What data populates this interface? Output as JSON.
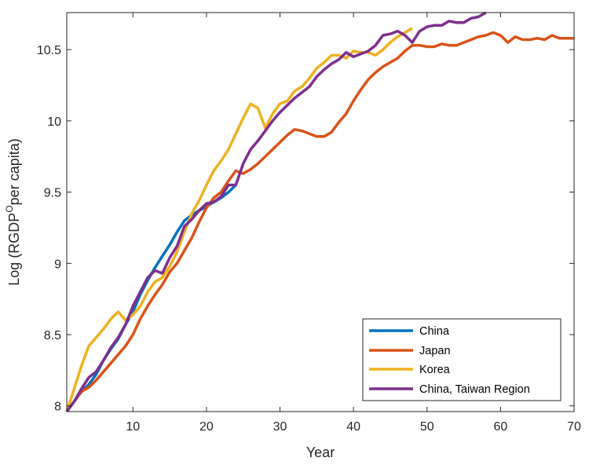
{
  "chart_data": {
    "type": "line",
    "xlabel": "Year",
    "ylabel": {
      "main": "Log (RGDP",
      "sup": "O",
      "tail": "per capita)"
    },
    "xlim": [
      1,
      70
    ],
    "ylim": [
      7.96,
      10.76
    ],
    "xticks": [
      10,
      20,
      30,
      40,
      50,
      60,
      70
    ],
    "xtick_labels": [
      "10",
      "20",
      "30",
      "40",
      "50",
      "60",
      "70"
    ],
    "yticks": [
      8,
      8.5,
      9,
      9.5,
      10,
      10.5
    ],
    "ytick_labels": [
      "8",
      "8.5",
      "9",
      "9.5",
      "10",
      "10.5"
    ],
    "grid": false,
    "legend_position": "bottom-right",
    "series": [
      {
        "name": "China",
        "color": "#0072BD",
        "x": [
          1,
          2,
          3,
          4,
          5,
          6,
          7,
          8,
          9,
          10,
          11,
          12,
          13,
          14,
          15,
          16,
          17,
          18,
          19,
          20,
          21,
          22,
          23,
          24
        ],
        "y": [
          7.96,
          8.03,
          8.1,
          8.15,
          8.22,
          8.32,
          8.4,
          8.47,
          8.57,
          8.66,
          8.78,
          8.88,
          8.97,
          9.05,
          9.13,
          9.22,
          9.3,
          9.34,
          9.37,
          9.4,
          9.43,
          9.46,
          9.5,
          9.55
        ]
      },
      {
        "name": "Japan",
        "color": "#D95319",
        "x": [
          1,
          2,
          3,
          4,
          5,
          6,
          7,
          8,
          9,
          10,
          11,
          12,
          13,
          14,
          15,
          16,
          17,
          18,
          19,
          20,
          21,
          22,
          23,
          24,
          25,
          26,
          27,
          28,
          29,
          30,
          31,
          32,
          33,
          34,
          35,
          36,
          37,
          38,
          39,
          40,
          41,
          42,
          43,
          44,
          45,
          46,
          47,
          48,
          49,
          50,
          51,
          52,
          53,
          54,
          55,
          56,
          57,
          58,
          59,
          60,
          61,
          62,
          63,
          64,
          65,
          66,
          67,
          68,
          69,
          70
        ],
        "y": [
          7.96,
          8.03,
          8.1,
          8.13,
          8.18,
          8.24,
          8.3,
          8.36,
          8.42,
          8.5,
          8.61,
          8.7,
          8.78,
          8.85,
          8.94,
          9.0,
          9.09,
          9.18,
          9.29,
          9.39,
          9.46,
          9.5,
          9.58,
          9.65,
          9.63,
          9.66,
          9.7,
          9.75,
          9.8,
          9.85,
          9.9,
          9.94,
          9.93,
          9.91,
          9.89,
          9.89,
          9.92,
          9.99,
          10.05,
          10.14,
          10.22,
          10.29,
          10.34,
          10.38,
          10.41,
          10.44,
          10.49,
          10.53,
          10.53,
          10.52,
          10.52,
          10.54,
          10.53,
          10.53,
          10.55,
          10.57,
          10.59,
          10.6,
          10.62,
          10.6,
          10.55,
          10.59,
          10.57,
          10.57,
          10.58,
          10.57,
          10.6,
          10.58,
          10.58,
          10.58
        ]
      },
      {
        "name": "Korea",
        "color": "#EDB120",
        "x": [
          1,
          2,
          3,
          4,
          5,
          6,
          7,
          8,
          9,
          10,
          11,
          12,
          13,
          14,
          15,
          16,
          17,
          18,
          19,
          20,
          21,
          22,
          23,
          24,
          25,
          26,
          27,
          28,
          29,
          30,
          31,
          32,
          33,
          34,
          35,
          36,
          37,
          38,
          39,
          40,
          41,
          42,
          43,
          44,
          45,
          46,
          47,
          48
        ],
        "y": [
          7.96,
          8.12,
          8.28,
          8.42,
          8.48,
          8.54,
          8.61,
          8.66,
          8.6,
          8.64,
          8.7,
          8.8,
          8.87,
          8.9,
          8.98,
          9.08,
          9.22,
          9.35,
          9.44,
          9.55,
          9.65,
          9.72,
          9.8,
          9.91,
          10.02,
          10.12,
          10.09,
          9.95,
          10.05,
          10.12,
          10.14,
          10.21,
          10.24,
          10.3,
          10.37,
          10.41,
          10.46,
          10.46,
          10.44,
          10.49,
          10.48,
          10.48,
          10.46,
          10.5,
          10.55,
          10.59,
          10.62,
          10.65
        ]
      },
      {
        "name": "China, Taiwan Region",
        "color": "#7E2F8E",
        "x": [
          1,
          2,
          3,
          4,
          5,
          6,
          7,
          8,
          9,
          10,
          11,
          12,
          13,
          14,
          15,
          16,
          17,
          18,
          19,
          20,
          21,
          22,
          23,
          24,
          25,
          26,
          27,
          28,
          29,
          30,
          31,
          32,
          33,
          34,
          35,
          36,
          37,
          38,
          39,
          40,
          41,
          42,
          43,
          44,
          45,
          46,
          47,
          48,
          49,
          50,
          51,
          52,
          53,
          54,
          55,
          56,
          57,
          58
        ],
        "y": [
          7.96,
          8.03,
          8.12,
          8.2,
          8.24,
          8.32,
          8.41,
          8.48,
          8.57,
          8.7,
          8.8,
          8.9,
          8.95,
          8.93,
          9.04,
          9.12,
          9.26,
          9.31,
          9.37,
          9.42,
          9.43,
          9.47,
          9.55,
          9.55,
          9.7,
          9.8,
          9.86,
          9.93,
          10.0,
          10.06,
          10.11,
          10.16,
          10.2,
          10.24,
          10.31,
          10.36,
          10.4,
          10.43,
          10.48,
          10.45,
          10.47,
          10.49,
          10.53,
          10.6,
          10.61,
          10.63,
          10.6,
          10.55,
          10.63,
          10.66,
          10.67,
          10.67,
          10.7,
          10.69,
          10.69,
          10.72,
          10.73,
          10.76
        ]
      }
    ]
  }
}
